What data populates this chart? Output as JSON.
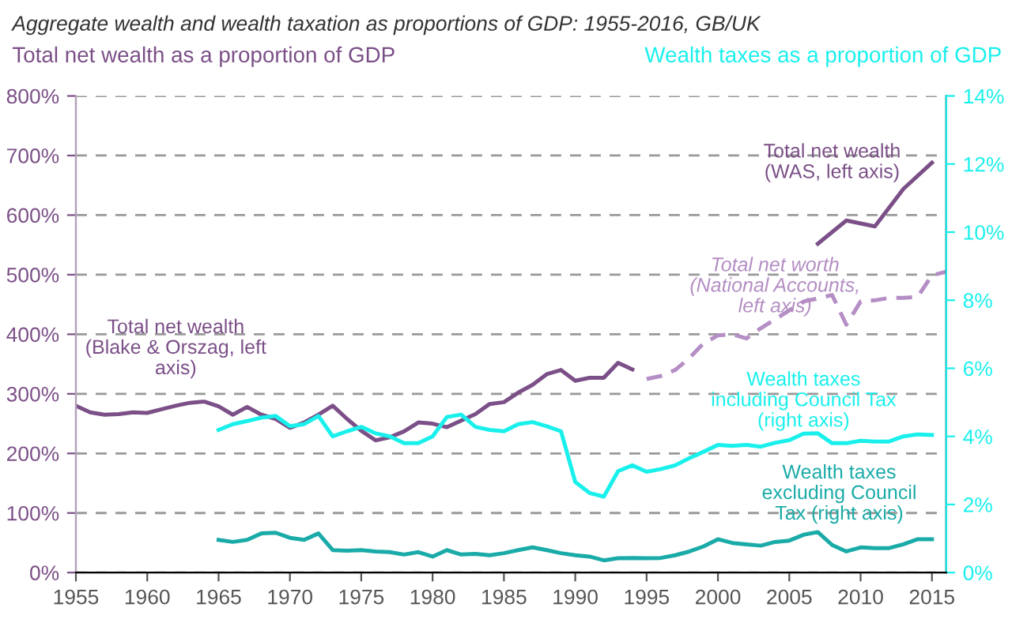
{
  "chart_data": {
    "type": "line",
    "title": "Aggregate wealth and wealth taxation as proportions of GDP: 1955-2016, GB/UK",
    "ylabel": "Total net wealth as a proportion of GDP",
    "y2label": "Wealth taxes as a proportion of GDP",
    "xlim": [
      1955,
      2016
    ],
    "xticks": [
      1955,
      1960,
      1965,
      1970,
      1975,
      1980,
      1985,
      1990,
      1995,
      2000,
      2005,
      2010,
      2015
    ],
    "ylim": [
      0,
      800
    ],
    "yticks": [
      {
        "value": 0,
        "label": "0%"
      },
      {
        "value": 100,
        "label": "100%"
      },
      {
        "value": 200,
        "label": "200%"
      },
      {
        "value": 300,
        "label": "300%"
      },
      {
        "value": 400,
        "label": "400%"
      },
      {
        "value": 500,
        "label": "500%"
      },
      {
        "value": 600,
        "label": "600%"
      },
      {
        "value": 700,
        "label": "700%"
      },
      {
        "value": 800,
        "label": "800%"
      }
    ],
    "y2lim": [
      0,
      14
    ],
    "y2ticks": [
      {
        "value": 0,
        "label": "0%"
      },
      {
        "value": 2,
        "label": "2%"
      },
      {
        "value": 4,
        "label": "4%"
      },
      {
        "value": 6,
        "label": "6%"
      },
      {
        "value": 8,
        "label": "8%"
      },
      {
        "value": 10,
        "label": "10%"
      },
      {
        "value": 12,
        "label": "12%"
      },
      {
        "value": 14,
        "label": "14%"
      }
    ],
    "grid": "y",
    "legend": false,
    "series": [
      {
        "name": "Total net wealth\n(Blake & Orszag, left\naxis)",
        "color": "#7b4f87",
        "line_style": "solid",
        "x": [
          1955,
          1956,
          1957,
          1958,
          1959,
          1960,
          1961,
          1962,
          1963,
          1964,
          1965,
          1966,
          1967,
          1968,
          1969,
          1970,
          1971,
          1972,
          1973,
          1974,
          1975,
          1976,
          1977,
          1978,
          1979,
          1980,
          1981,
          1982,
          1983,
          1984,
          1985,
          1986,
          1987,
          1988,
          1989,
          1990,
          1991,
          1992,
          1993,
          1994
        ],
        "values": [
          280,
          269,
          265,
          266,
          269,
          268,
          274,
          280,
          285,
          287,
          279,
          265,
          278,
          265,
          258,
          243,
          252,
          265,
          280,
          258,
          238,
          222,
          227,
          237,
          252,
          250,
          244,
          255,
          266,
          283,
          286,
          302,
          315,
          333,
          340,
          322,
          327,
          327,
          352,
          341
        ]
      },
      {
        "name": "Total net worth\n(National Accounts,\nleft axis)",
        "color": "#b48ec4",
        "line_style": "dashed",
        "x": [
          1995,
          1996,
          1997,
          1998,
          1999,
          2000,
          2001,
          2002,
          2003,
          2004,
          2005,
          2006,
          2007,
          2008,
          2009,
          2010,
          2011,
          2012,
          2013,
          2014,
          2015,
          2016
        ],
        "values": [
          325,
          330,
          340,
          360,
          385,
          398,
          400,
          393,
          410,
          425,
          440,
          455,
          460,
          466,
          416,
          455,
          457,
          461,
          461,
          463,
          499,
          505
        ]
      },
      {
        "name": "Total net wealth\n(WAS, left axis)",
        "color": "#7b4f87",
        "line_style": "solid",
        "x": [
          2007,
          2009,
          2011,
          2013,
          2015
        ],
        "values": [
          552,
          591,
          581,
          644,
          688
        ]
      },
      {
        "name": "Wealth taxes\nincluding Council Tax\n(right axis)",
        "color": "#19f0ec",
        "line_style": "solid",
        "axis": "y2",
        "x": [
          1965,
          1966,
          1967,
          1968,
          1969,
          1970,
          1971,
          1972,
          1973,
          1974,
          1975,
          1976,
          1977,
          1978,
          1979,
          1980,
          1981,
          1982,
          1983,
          1984,
          1985,
          1986,
          1987,
          1988,
          1989,
          1990,
          1991,
          1992,
          1993,
          1994,
          1995,
          1996,
          1997,
          1998,
          1999,
          2000,
          2001,
          2002,
          2003,
          2004,
          2005,
          2006,
          2007,
          2008,
          2009,
          2010,
          2011,
          2012,
          2013,
          2014,
          2015
        ],
        "values": [
          4.19,
          4.36,
          4.45,
          4.55,
          4.6,
          4.3,
          4.36,
          4.6,
          4.0,
          4.15,
          4.28,
          4.09,
          4.0,
          3.8,
          3.8,
          4.0,
          4.57,
          4.64,
          4.28,
          4.19,
          4.15,
          4.36,
          4.42,
          4.3,
          4.15,
          2.66,
          2.34,
          2.23,
          2.98,
          3.15,
          2.96,
          3.04,
          3.15,
          3.36,
          3.55,
          3.75,
          3.72,
          3.75,
          3.7,
          3.81,
          3.89,
          4.08,
          4.09,
          3.8,
          3.8,
          3.87,
          3.85,
          3.85,
          4.0,
          4.06,
          4.04
        ]
      },
      {
        "name": "Wealth taxes\nexcluding Council\nTax (right axis)",
        "color": "#1aaba8",
        "line_style": "solid",
        "axis": "y2",
        "x": [
          1965,
          1966,
          1967,
          1968,
          1969,
          1970,
          1971,
          1972,
          1973,
          1974,
          1975,
          1976,
          1977,
          1978,
          1979,
          1980,
          1981,
          1982,
          1983,
          1984,
          1985,
          1986,
          1987,
          1988,
          1989,
          1990,
          1991,
          1992,
          1993,
          1994,
          1995,
          1996,
          1997,
          1998,
          1999,
          2000,
          2001,
          2002,
          2003,
          2004,
          2005,
          2006,
          2007,
          2008,
          2009,
          2010,
          2011,
          2012,
          2013,
          2014,
          2015
        ],
        "values": [
          0.96,
          0.9,
          0.96,
          1.15,
          1.17,
          1.02,
          0.96,
          1.15,
          0.66,
          0.64,
          0.66,
          0.62,
          0.6,
          0.53,
          0.6,
          0.47,
          0.66,
          0.53,
          0.55,
          0.51,
          0.57,
          0.66,
          0.74,
          0.66,
          0.57,
          0.51,
          0.47,
          0.36,
          0.42,
          0.43,
          0.42,
          0.43,
          0.51,
          0.62,
          0.77,
          0.98,
          0.87,
          0.83,
          0.79,
          0.9,
          0.94,
          1.11,
          1.19,
          0.81,
          0.62,
          0.74,
          0.72,
          0.72,
          0.83,
          0.98,
          0.98
        ]
      }
    ]
  }
}
